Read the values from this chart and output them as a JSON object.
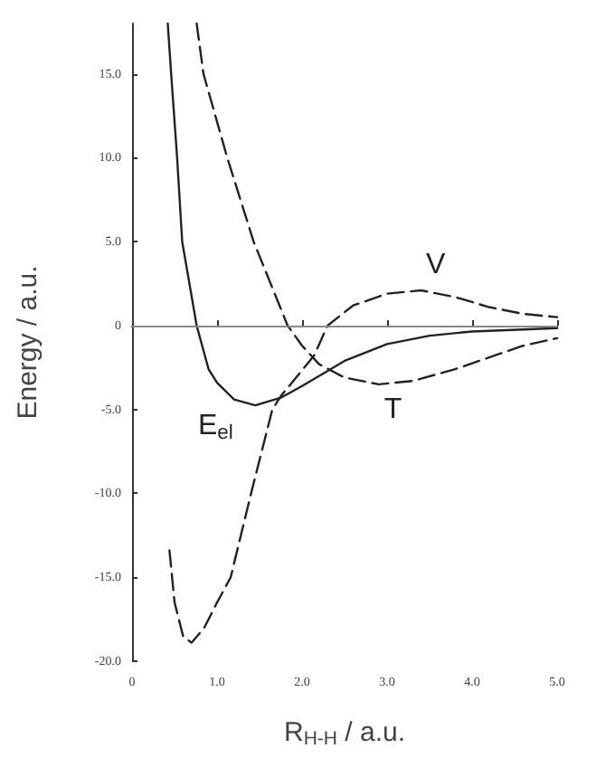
{
  "chart_data": {
    "type": "line",
    "xlabel": "R$_{H-H}$ / a.u.",
    "ylabel": "Energy / a.u.",
    "xlim": [
      0,
      5
    ],
    "ylim": [
      -20,
      18
    ],
    "xticks": [
      0,
      {
        "value": 1,
        "label": "1.0"
      },
      {
        "value": 2,
        "label": "2.0"
      },
      {
        "value": 3,
        "label": "3.0"
      },
      {
        "value": 4,
        "label": "4.0"
      },
      {
        "value": 5,
        "label": "5.0"
      }
    ],
    "yticks": [
      {
        "value": -20,
        "label": "-20.0"
      },
      {
        "value": -15,
        "label": "-15.0"
      },
      {
        "value": -10,
        "label": "-10.0"
      },
      {
        "value": -5,
        "label": "-5.0"
      },
      0,
      {
        "value": 5,
        "label": "5.0"
      },
      {
        "value": 10,
        "label": "10.0"
      },
      {
        "value": 15,
        "label": "15.0"
      }
    ],
    "grid": false,
    "legend": false,
    "marker": "none",
    "ref_lines": [
      {
        "axis": "y",
        "value": 0,
        "color": "#888888",
        "line_style": "solid"
      }
    ],
    "series": [
      {
        "name": "E$_{el}$",
        "color": "#222222",
        "line_style": "solid",
        "x": [
          0.42,
          0.46,
          0.53,
          0.59,
          0.76,
          0.9,
          1.0,
          1.2,
          1.45,
          1.75,
          2.0,
          2.5,
          3.0,
          3.5,
          4.0,
          5.0
        ],
        "values": [
          18,
          15,
          10,
          5,
          0,
          -2.6,
          -3.4,
          -4.4,
          -4.75,
          -4.3,
          -3.6,
          -2.1,
          -1.1,
          -0.6,
          -0.35,
          -0.15
        ]
      },
      {
        "name": "T",
        "color": "#222222",
        "line_style": "dashed",
        "x": [
          0.76,
          0.84,
          1.12,
          1.43,
          1.83,
          2.0,
          2.2,
          2.5,
          2.9,
          3.3,
          3.8,
          4.2,
          4.6,
          5.0
        ],
        "values": [
          18,
          15,
          10,
          5,
          0,
          -1.2,
          -2.3,
          -3.1,
          -3.5,
          -3.3,
          -2.6,
          -1.9,
          -1.2,
          -0.75
        ]
      },
      {
        "name": "V",
        "color": "#222222",
        "line_style": "dashed",
        "x": [
          0.44,
          0.5,
          0.6,
          0.7,
          0.85,
          1.0,
          1.16,
          1.4,
          1.65,
          1.75,
          2.14,
          2.3,
          2.6,
          3.0,
          3.4,
          3.8,
          4.2,
          4.6,
          5.0
        ],
        "values": [
          -13.4,
          -16.5,
          -18.5,
          -18.9,
          -18,
          -16.5,
          -15,
          -10,
          -5,
          -4.2,
          -1.8,
          0,
          1.2,
          1.9,
          2.1,
          1.7,
          1.1,
          0.7,
          0.5
        ]
      }
    ]
  }
}
